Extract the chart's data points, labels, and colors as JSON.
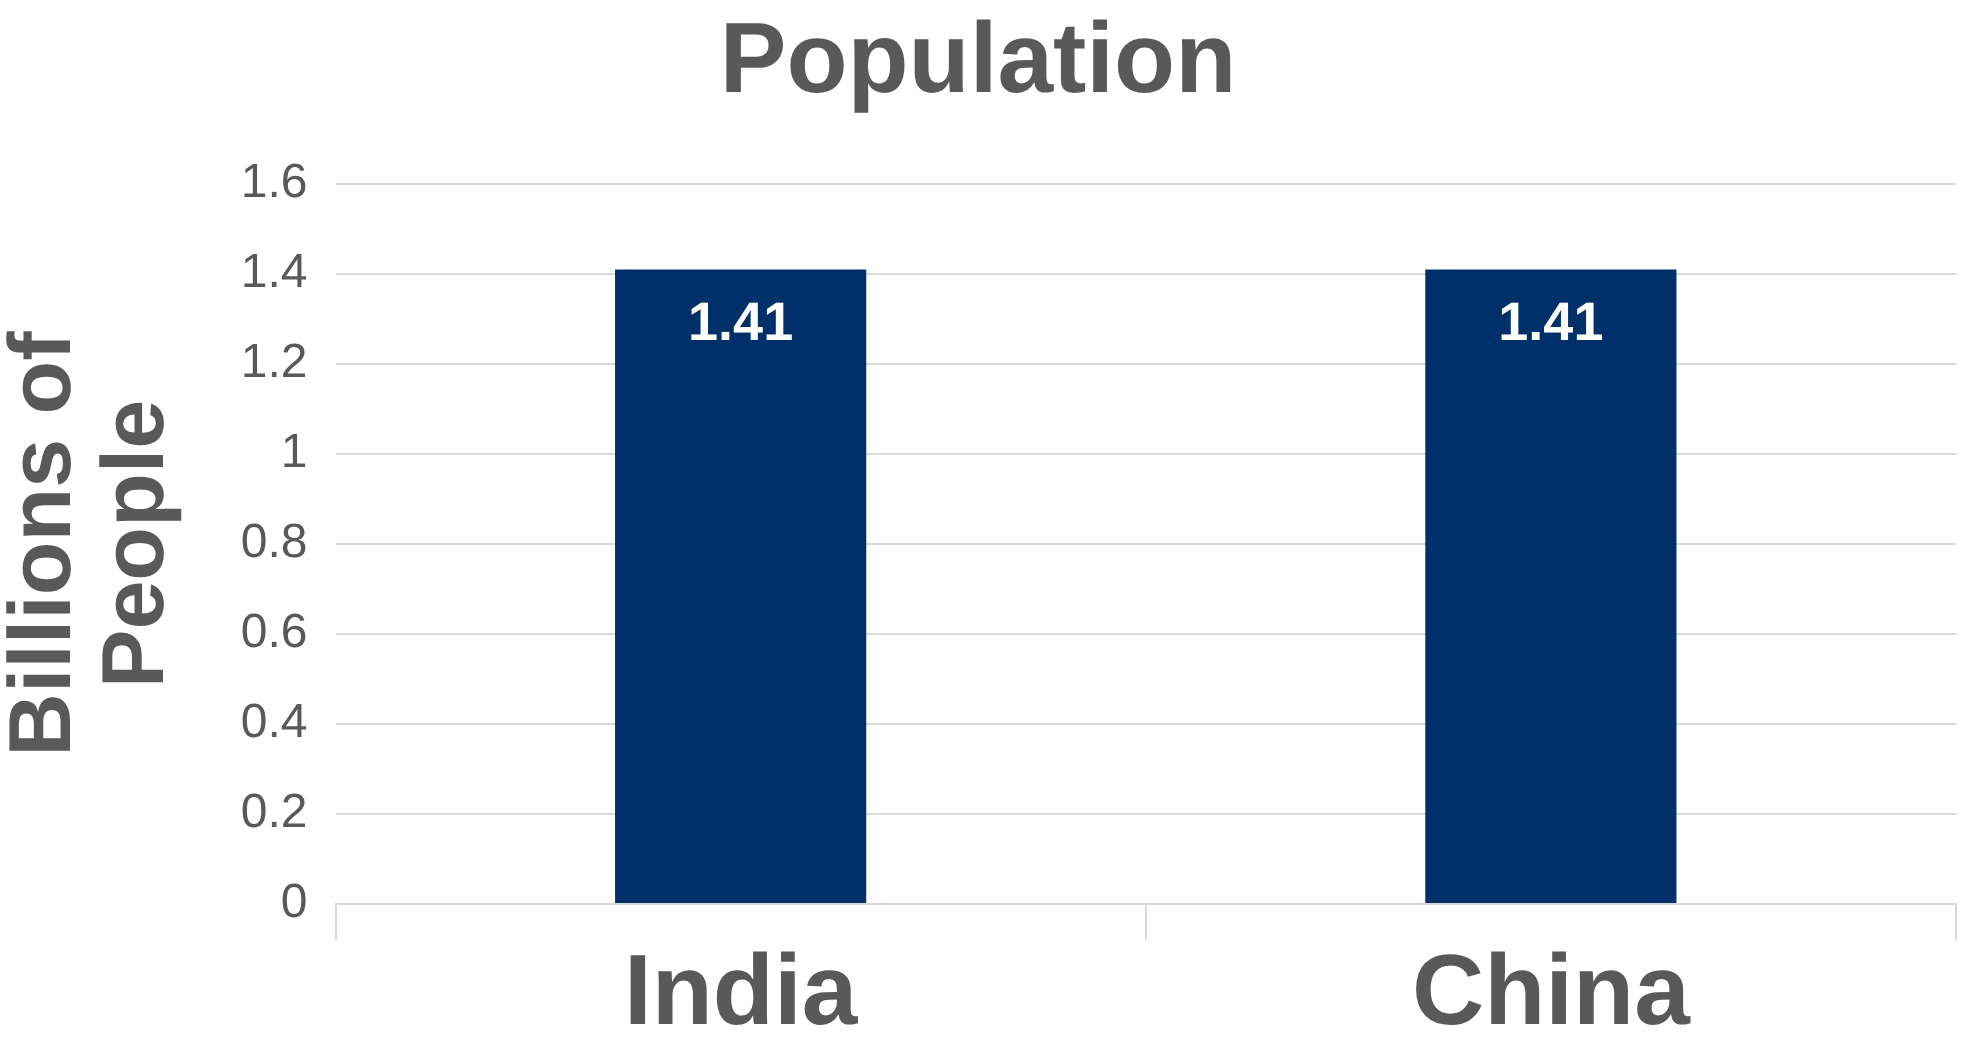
{
  "chart_data": {
    "type": "bar",
    "title": "Population",
    "ylabel": "Billions of People",
    "categories": [
      "India",
      "China"
    ],
    "values": [
      1.41,
      1.41
    ],
    "color": "#003069",
    "ylim": [
      0,
      1.6
    ],
    "yticks": [
      0,
      {
        "value": 0.2,
        "label": "0.2"
      },
      {
        "value": 0.4,
        "label": "0.4"
      },
      {
        "value": 0.6,
        "label": "0.6"
      },
      {
        "value": 0.8,
        "label": "0.8"
      },
      1,
      {
        "value": 1.2,
        "label": "1.2"
      },
      {
        "value": 1.4,
        "label": "1.4"
      },
      {
        "value": 1.6,
        "label": "1.6"
      }
    ],
    "grid": "y",
    "legend": false,
    "data_labels": true
  }
}
